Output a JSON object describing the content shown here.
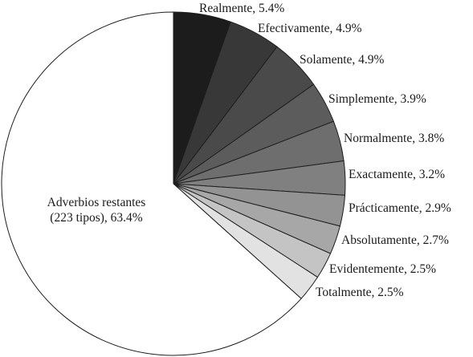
{
  "chart_data": {
    "type": "pie",
    "start_angle_deg": 0,
    "direction": "clockwise",
    "slices": [
      {
        "label": "Realmente, 5.4%",
        "name": "Realmente",
        "value": 5.4,
        "color": "#1c1c1c"
      },
      {
        "label": "Efectivamente, 4.9%",
        "name": "Efectivamente",
        "value": 4.9,
        "color": "#383838"
      },
      {
        "label": "Solamente, 4.9%",
        "name": "Solamente",
        "value": 4.9,
        "color": "#4a4a4a"
      },
      {
        "label": "Simplemente, 3.9%",
        "name": "Simplemente",
        "value": 3.9,
        "color": "#5c5c5c"
      },
      {
        "label": "Normalmente, 3.8%",
        "name": "Normalmente",
        "value": 3.8,
        "color": "#6e6e6e"
      },
      {
        "label": "Exactamente, 3.2%",
        "name": "Exactamente",
        "value": 3.2,
        "color": "#808080"
      },
      {
        "label": "Prácticamente, 2.9%",
        "name": "Prácticamente",
        "value": 2.9,
        "color": "#939393"
      },
      {
        "label": "Absolutamente, 2.7%",
        "name": "Absolutamente",
        "value": 2.7,
        "color": "#a7a7a7"
      },
      {
        "label": "Evidentemente, 2.5%",
        "name": "Evidentemente",
        "value": 2.5,
        "color": "#c4c4c4"
      },
      {
        "label": "Totalmente, 2.5%",
        "name": "Totalmente",
        "value": 2.5,
        "color": "#e2e2e2"
      },
      {
        "label": "Adverbios restantes (223 tipos), 63.4%",
        "name": "Adverbios restantes",
        "value": 63.4,
        "color": "#ffffff"
      }
    ],
    "remaining_label_lines": [
      "Adverbios restantes",
      "(223 tipos), 63.4%"
    ]
  }
}
